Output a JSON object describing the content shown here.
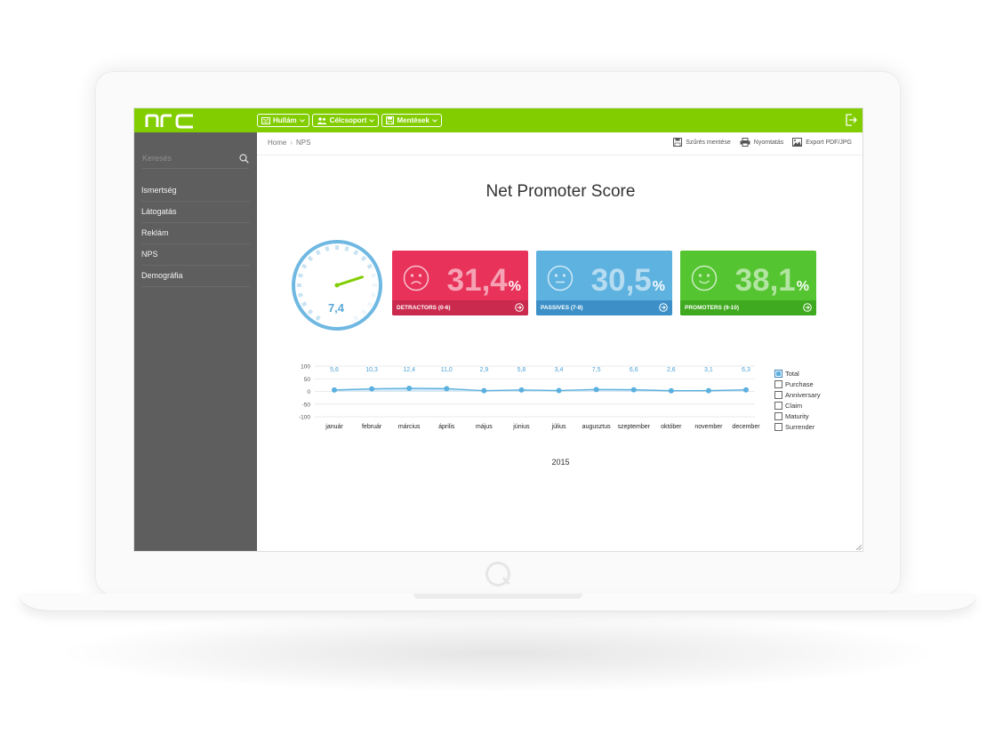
{
  "app": {
    "logo_text": "nrc",
    "logo_color": "#ffffff"
  },
  "topbar": {
    "bg_color": "#82cd00",
    "menus": [
      {
        "label": "Hullám",
        "icon": "waves-icon"
      },
      {
        "label": "Célcsoport",
        "icon": "users-icon"
      },
      {
        "label": "Mentések",
        "icon": "save-icon"
      }
    ],
    "logout_icon": "logout-icon"
  },
  "sidebar": {
    "search_placeholder": "Keresés",
    "items": [
      {
        "label": "Ismertség"
      },
      {
        "label": "Látogatás"
      },
      {
        "label": "Reklám"
      },
      {
        "label": "NPS"
      },
      {
        "label": "Demográfia"
      }
    ]
  },
  "breadcrumb": {
    "home": "Home",
    "separator": "›",
    "current": "NPS"
  },
  "actions": {
    "save_filter": "Szűrés mentése",
    "print": "Nyomtatás",
    "export": "Export PDF/JPG"
  },
  "page": {
    "title": "Net Promoter Score"
  },
  "gauge": {
    "value": "7,4",
    "value_fraction": 0.74,
    "color": "#5aa8d6",
    "needle_color": "#82cd00"
  },
  "cards": [
    {
      "value": "31,4",
      "unit": "%",
      "label": "DETRACTORS (0-6)",
      "face": "sad",
      "bg": "#e8325a",
      "footer": "#c92a4d"
    },
    {
      "value": "30,5",
      "unit": "%",
      "label": "PASSIVES (7-8)",
      "face": "neutral",
      "bg": "#5eb2e0",
      "footer": "#3c90c7"
    },
    {
      "value": "38,1",
      "unit": "%",
      "label": "PROMOTERS (9-10)",
      "face": "happy",
      "bg": "#55c431",
      "footer": "#3fa91f"
    }
  ],
  "chart_data": {
    "type": "line",
    "categories": [
      "január",
      "február",
      "március",
      "április",
      "május",
      "június",
      "július",
      "augusztus",
      "szeptember",
      "október",
      "november",
      "december"
    ],
    "series": [
      {
        "name": "Total",
        "values": [
          5.6,
          10.3,
          12.4,
          11.0,
          2.9,
          5.8,
          3.4,
          7.5,
          6.6,
          2.6,
          3.1,
          6.3
        ]
      }
    ],
    "data_labels": [
      "5,6",
      "10,3",
      "12,4",
      "11,0",
      "2,9",
      "5,8",
      "3,4",
      "7,5",
      "6,6",
      "2,6",
      "3,1",
      "6,3"
    ],
    "y_ticks": [
      "100",
      "50",
      "0",
      "-50",
      "-100"
    ],
    "ylim": [
      -100,
      100
    ],
    "grid": true,
    "xlabel": "2015",
    "line_color": "#5bb0df",
    "legend": [
      {
        "label": "Total",
        "checked": true
      },
      {
        "label": "Purchase",
        "checked": false
      },
      {
        "label": "Anniversary",
        "checked": false
      },
      {
        "label": "Claim",
        "checked": false
      },
      {
        "label": "Maturity",
        "checked": false
      },
      {
        "label": "Surrender",
        "checked": false
      }
    ]
  }
}
